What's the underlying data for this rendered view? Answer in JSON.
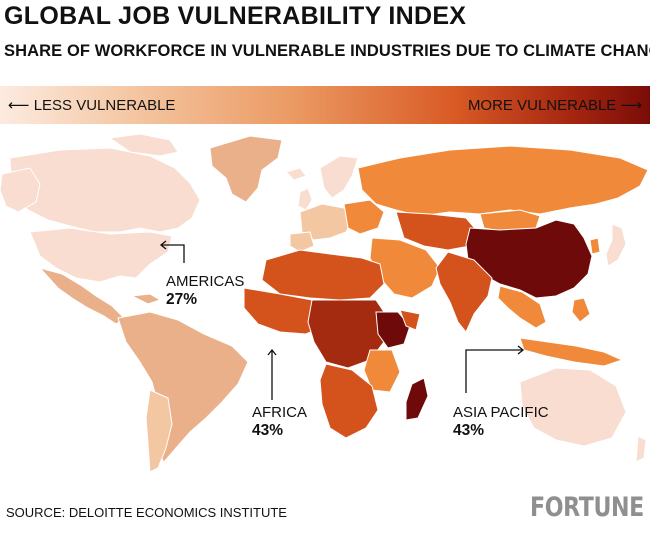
{
  "title": "GLOBAL JOB VULNERABILITY INDEX",
  "subtitle": "SHARE OF WORKFORCE IN VULNERABLE INDUSTRIES DUE TO CLIMATE CHANGE",
  "legend": {
    "left_label": "LESS VULNERABLE",
    "right_label": "MORE VULNERABLE",
    "left_arrow": "⟵",
    "right_arrow": "⟶",
    "color_low": "#fcebe0",
    "color_high": "#7a0c08"
  },
  "regions": [
    {
      "name": "AMERICAS",
      "value": "27%"
    },
    {
      "name": "AFRICA",
      "value": "43%"
    },
    {
      "name": "ASIA PACIFIC",
      "value": "43%"
    }
  ],
  "source": "SOURCE: DELOITTE ECONOMICS INSTITUTE",
  "brand": "FORTUNE",
  "palette": {
    "very_low": "#f8ddd0",
    "low": "#e9b08a",
    "medium": "#f08a3a",
    "high": "#d4521c",
    "very_high": "#a42a10",
    "extreme": "#6f0a0a"
  }
}
